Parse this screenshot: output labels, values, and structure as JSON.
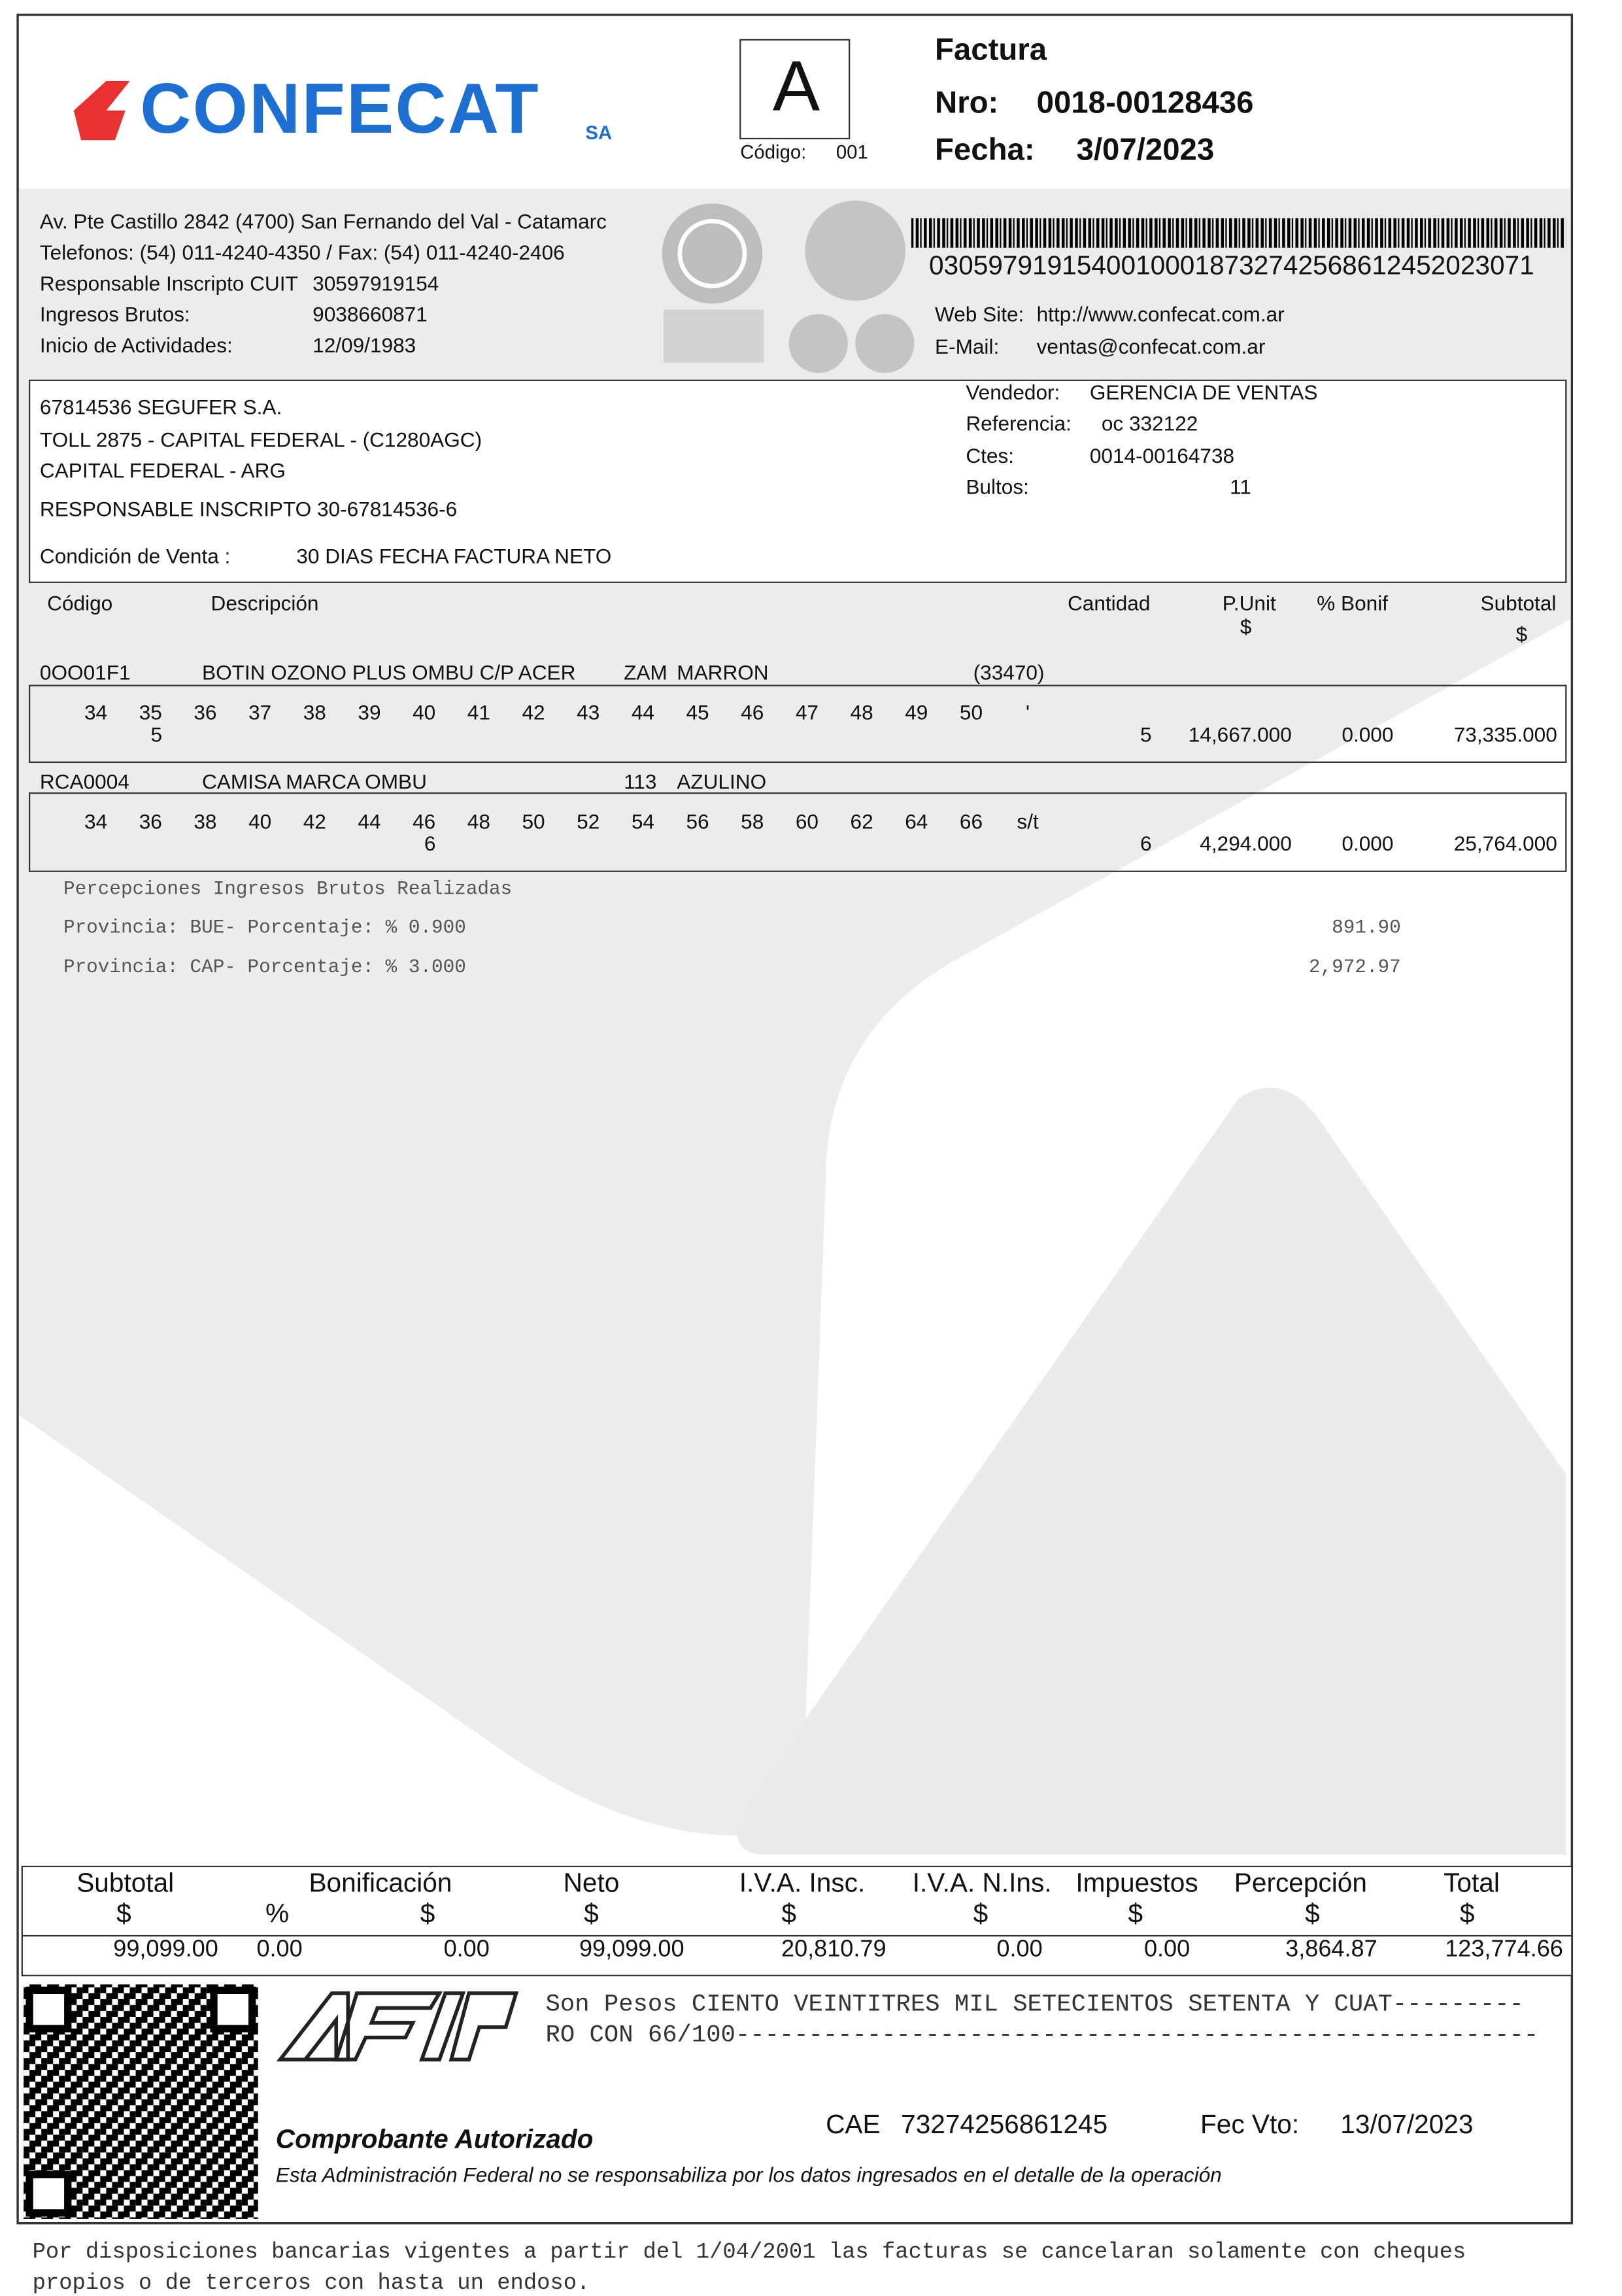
{
  "header": {
    "brand": "CONFECAT",
    "brand_suffix": "SA",
    "letter": "A",
    "code_label": "Código:",
    "code": "001",
    "doc_type": "Factura",
    "number_label": "Nro:",
    "number": "0018-00128436",
    "date_label": "Fecha:",
    "date": "3/07/2023"
  },
  "issuer": {
    "address": "Av. Pte Castillo 2842 (4700) San Fernando del Val - Catamarc",
    "phones": "Telefonos: (54) 011-4240-4350 / Fax: (54) 011-4240-2406",
    "tax_label": "Responsable Inscripto CUIT",
    "cuit": "30597919154",
    "gross_label": "Ingresos Brutos:",
    "gross": "9038660871",
    "start_label": "Inicio de Actividades:",
    "start": "12/09/1983",
    "barcode": "03059791915400100018732742568612452023071",
    "web_label": "Web Site:",
    "web": "http://www.confecat.com.ar",
    "email_label": "E-Mail:",
    "email": "ventas@confecat.com.ar"
  },
  "client": {
    "name": "67814536  SEGUFER S.A.",
    "address": "TOLL 2875 - CAPITAL FEDERAL - (C1280AGC)",
    "city": "CAPITAL FEDERAL - ARG",
    "tax": "RESPONSABLE INSCRIPTO  30-67814536-6",
    "terms_label": "Condición de Venta :",
    "terms": "30 DIAS FECHA FACTURA NETO",
    "seller_label": "Vendedor:",
    "seller": "GERENCIA DE VENTAS",
    "ref_label": "Referencia:",
    "ref": "oc 332122",
    "ctes_label": "Ctes:",
    "ctes": "0014-00164738",
    "packages_label": "Bultos:",
    "packages": "11"
  },
  "items": {
    "columns": {
      "code": "Código",
      "description": "Descripción",
      "quantity": "Cantidad",
      "unit_price": "P.Unit",
      "unit_price_currency": "$",
      "discount": "% Bonif",
      "subtotal": "Subtotal",
      "subtotal_currency": "$"
    },
    "rows": [
      {
        "code": "0OO01F1",
        "description": "BOTIN OZONO PLUS OMBU C/P ACER",
        "variant": "ZAM",
        "color": "MARRON",
        "reference": "(33470)",
        "sizes": [
          "34",
          "35",
          "36",
          "37",
          "38",
          "39",
          "40",
          "41",
          "42",
          "43",
          "44",
          "45",
          "46",
          "47",
          "48",
          "49",
          "50",
          "'"
        ],
        "size_quantities": [
          null,
          "5",
          null,
          null,
          null,
          null,
          null,
          null,
          null,
          null,
          null,
          null,
          null,
          null,
          null,
          null,
          null,
          null
        ],
        "quantity": "5",
        "unit_price": "14,667.000",
        "discount": "0.000",
        "subtotal": "73,335.000"
      },
      {
        "code": "RCA0004",
        "description": "CAMISA MARCA OMBU",
        "variant": "113",
        "color": "AZULINO",
        "sizes": [
          "34",
          "36",
          "38",
          "40",
          "42",
          "44",
          "46",
          "48",
          "50",
          "52",
          "54",
          "56",
          "58",
          "60",
          "62",
          "64",
          "66",
          "s/t"
        ],
        "size_quantities": [
          null,
          null,
          null,
          null,
          null,
          null,
          "6",
          null,
          null,
          null,
          null,
          null,
          null,
          null,
          null,
          null,
          null,
          null
        ],
        "quantity": "6",
        "unit_price": "4,294.000",
        "discount": "0.000",
        "subtotal": "25,764.000"
      }
    ]
  },
  "perceptions": {
    "title": "Percepciones Ingresos Brutos Realizadas",
    "rows": [
      {
        "label": "Provincia: BUE- Porcentaje: % 0.900",
        "amount": "891.90"
      },
      {
        "label": "Provincia: CAP- Porcentaje: % 3.000",
        "amount": "2,972.97"
      }
    ]
  },
  "totals": {
    "headers": [
      "Subtotal",
      "Bonificación",
      "Neto",
      "I.V.A. Insc.",
      "I.V.A. N.Ins.",
      "Impuestos",
      "Percepción",
      "Total"
    ],
    "units": [
      "$",
      "%",
      "$",
      "$",
      "$",
      "$",
      "$",
      "$",
      "$"
    ],
    "values": [
      "99,099.00",
      "0.00",
      "0.00",
      "99,099.00",
      "20,810.79",
      "0.00",
      "0.00",
      "3,864.87",
      "123,774.66"
    ]
  },
  "afip": {
    "amount_words": [
      "Son Pesos  CIENTO VEINTITRES MIL SETECIENTOS SETENTA Y CUAT---------",
      "RO CON 66/100-------------------------------------------------------"
    ],
    "authorized": "Comprobante Autorizado",
    "cae_label": "CAE",
    "cae": "73274256861245",
    "due_label": "Fec Vto:",
    "due": "13/07/2023",
    "disclaimer": "Esta Administración Federal no se responsabiliza por los datos ingresados en el detalle de la operación"
  },
  "footer": [
    "Por disposiciones bancarias vigentes a partir del 1/04/2001 las facturas se cancelaran solamente con cheques",
    "propios o de terceros con hasta un endoso."
  ]
}
